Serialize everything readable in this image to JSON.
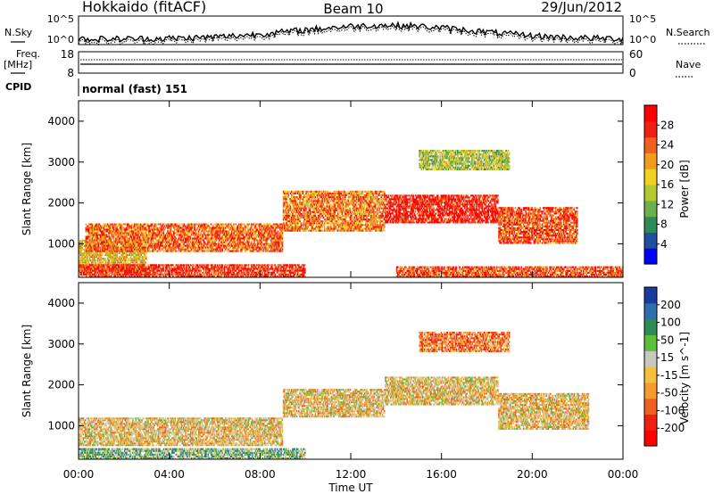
{
  "header": {
    "station": "Hokkaido (fitACF)",
    "beam": "Beam 10",
    "date": "29/Jun/2012"
  },
  "noise_panel": {
    "left_label": "N.Sky",
    "left_ticks": [
      "10^5",
      "10^0"
    ],
    "right_ticks": [
      "10^5",
      "10^0"
    ],
    "right_label": "N.Search"
  },
  "freq_panel": {
    "left_label_1": "Freq.",
    "left_label_2": "[MHz]",
    "left_ticks": [
      "18",
      "8"
    ],
    "right_ticks": [
      "60",
      "0"
    ],
    "right_label": "Nave"
  },
  "cpid_panel": {
    "label": "CPID",
    "mode": "normal (fast) 151"
  },
  "x_axis": {
    "label": "Time UT",
    "ticks": [
      "00:00",
      "04:00",
      "08:00",
      "12:00",
      "16:00",
      "20:00",
      "00:00"
    ]
  },
  "chart_data": [
    {
      "type": "heatmap",
      "title": "",
      "ylabel": "Slant Range [km]",
      "xlabel": "Time UT",
      "xlim_hours": [
        0,
        24
      ],
      "ylim_km": [
        180,
        4500
      ],
      "yticks": [
        "1000",
        "2000",
        "3000",
        "4000"
      ],
      "colorbar": {
        "label": "Power [dB]",
        "ticks": [
          "4",
          "8",
          "12",
          "16",
          "20",
          "24",
          "28"
        ],
        "colors": [
          "#0000ff",
          "#1e4fa0",
          "#2e8b57",
          "#6ab04c",
          "#b5c832",
          "#f0d020",
          "#f39a20",
          "#f06020",
          "#f02010",
          "#ff0000"
        ]
      },
      "bands": [
        {
          "h0": 0.0,
          "h1": 3.0,
          "r0": 300,
          "r1": 1100,
          "level": 0.55
        },
        {
          "h0": 0.3,
          "h1": 9.0,
          "r0": 800,
          "r1": 1500,
          "level": 0.75
        },
        {
          "h0": 9.0,
          "h1": 13.5,
          "r0": 1300,
          "r1": 2300,
          "level": 0.7
        },
        {
          "h0": 13.5,
          "h1": 18.5,
          "r0": 1500,
          "r1": 2200,
          "level": 0.9
        },
        {
          "h0": 18.5,
          "h1": 22.0,
          "r0": 1000,
          "r1": 1900,
          "level": 0.8
        },
        {
          "h0": 0.0,
          "h1": 10.0,
          "r0": 180,
          "r1": 500,
          "level": 0.85
        },
        {
          "h0": 14.0,
          "h1": 24.0,
          "r0": 180,
          "r1": 450,
          "level": 0.8
        },
        {
          "h0": 15.0,
          "h1": 19.0,
          "r0": 2800,
          "r1": 3300,
          "level": 0.45
        }
      ]
    },
    {
      "type": "heatmap",
      "title": "",
      "ylabel": "Slant Range [km]",
      "xlabel": "Time UT",
      "xlim_hours": [
        0,
        24
      ],
      "ylim_km": [
        180,
        4500
      ],
      "yticks": [
        "1000",
        "2000",
        "3000",
        "4000"
      ],
      "colorbar": {
        "label": "Velocity [m s^-1]",
        "ticks": [
          "200",
          "100",
          "50",
          "15",
          "-15",
          "-50",
          "-100",
          "-200"
        ],
        "colors": [
          "#1a3a9e",
          "#2f6fb0",
          "#2e8b57",
          "#5bbf3a",
          "#c8c8c0",
          "#f5c040",
          "#f59a30",
          "#f06020",
          "#f02010",
          "#ff0000"
        ]
      },
      "bands": [
        {
          "h0": 0.0,
          "h1": 9.0,
          "r0": 500,
          "r1": 1200,
          "level": 0.45
        },
        {
          "h0": 9.0,
          "h1": 13.5,
          "r0": 1200,
          "r1": 1900,
          "level": 0.45
        },
        {
          "h0": 13.5,
          "h1": 18.5,
          "r0": 1500,
          "r1": 2200,
          "level": 0.45
        },
        {
          "h0": 18.5,
          "h1": 22.5,
          "r0": 900,
          "r1": 1800,
          "level": 0.45
        },
        {
          "h0": 0.0,
          "h1": 10.0,
          "r0": 180,
          "r1": 450,
          "level": 0.65
        },
        {
          "h0": 15.0,
          "h1": 19.0,
          "r0": 2800,
          "r1": 3300,
          "level": 0.3
        }
      ]
    }
  ]
}
